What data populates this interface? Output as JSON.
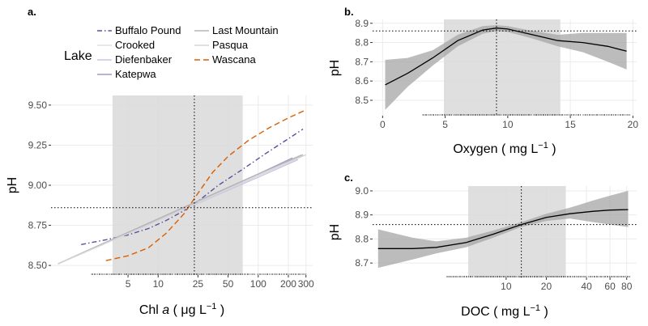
{
  "colors": {
    "panel_bg": "#ffffff",
    "grid": "#ebebeb",
    "shade": "#d9d9d9",
    "ribbon": "#a6a6a6",
    "fit": "#000000",
    "purple": "#7570b3",
    "orange": "#d95f02",
    "lavender": "#a3a0cf",
    "light": "#d0d0d0",
    "gray": "#b3b3b3"
  },
  "legend": {
    "title": "Lake",
    "items": [
      {
        "label": "Buffalo Pound",
        "style": "dashdot",
        "color": "#5b4f9e"
      },
      {
        "label": "Crooked",
        "style": "solid",
        "color": "#e0e0e0"
      },
      {
        "label": "Diefenbaker",
        "style": "solid",
        "color": "#c9c6e4"
      },
      {
        "label": "Katepwa",
        "style": "solid",
        "color": "#9f9cd0"
      },
      {
        "label": "Last Mountain",
        "style": "solid",
        "color": "#b5b5b5"
      },
      {
        "label": "Pasqua",
        "style": "solid",
        "color": "#d6d6d6"
      },
      {
        "label": "Wascana",
        "style": "dashed",
        "color": "#d95f02"
      }
    ]
  },
  "chart_data": [
    {
      "panel": "a.",
      "type": "line",
      "xlabel_parts": [
        "Chl ",
        "a",
        " ( μg L",
        "−1",
        " )"
      ],
      "ylabel": "pH",
      "x_scale": "log",
      "xlim": [
        0.85,
        350
      ],
      "ylim": [
        8.44,
        9.56
      ],
      "x_ticks": [
        5,
        10,
        25,
        50,
        100,
        200,
        300
      ],
      "x_tick_labels": [
        "5",
        "10",
        "25",
        "50",
        "100",
        "200",
        "300"
      ],
      "y_ticks": [
        8.5,
        8.75,
        9.0,
        9.25,
        9.5
      ],
      "y_tick_labels": [
        "8.50",
        "8.75",
        "9.00",
        "9.25",
        "9.50"
      ],
      "shaded_range": [
        3.5,
        70
      ],
      "vline": 23,
      "hline": 8.86,
      "series": [
        {
          "name": "Buffalo Pound",
          "style": "dashdot",
          "color": "#5b4f9e",
          "x": [
            1.7,
            3,
            5,
            8,
            12,
            18,
            25,
            40,
            70,
            120,
            200,
            280
          ],
          "y": [
            8.63,
            8.66,
            8.69,
            8.73,
            8.78,
            8.84,
            8.9,
            9.0,
            9.1,
            9.2,
            9.29,
            9.35
          ]
        },
        {
          "name": "Crooked",
          "style": "solid",
          "color": "#e0e0e0",
          "x": [
            1,
            10,
            100,
            270
          ],
          "y": [
            8.51,
            8.79,
            9.07,
            9.19
          ]
        },
        {
          "name": "Diefenbaker",
          "style": "solid",
          "color": "#c9c6e4",
          "x": [
            1,
            10,
            100,
            250
          ],
          "y": [
            8.51,
            8.78,
            9.05,
            9.16
          ]
        },
        {
          "name": "Katepwa",
          "style": "solid",
          "color": "#9f9cd0",
          "x": [
            1,
            10,
            100,
            220
          ],
          "y": [
            8.51,
            8.79,
            9.07,
            9.17
          ]
        },
        {
          "name": "Last Mountain",
          "style": "solid",
          "color": "#b5b5b5",
          "x": [
            1,
            10,
            100,
            280
          ],
          "y": [
            8.51,
            8.79,
            9.07,
            9.19
          ]
        },
        {
          "name": "Pasqua",
          "style": "solid",
          "color": "#d6d6d6",
          "x": [
            1,
            10,
            100,
            300
          ],
          "y": [
            8.51,
            8.78,
            9.06,
            9.19
          ]
        },
        {
          "name": "Wascana",
          "style": "dashed",
          "color": "#d95f02",
          "x": [
            3,
            5,
            8,
            12,
            18,
            25,
            35,
            50,
            80,
            130,
            200,
            300
          ],
          "y": [
            8.53,
            8.56,
            8.61,
            8.7,
            8.82,
            8.95,
            9.08,
            9.18,
            9.28,
            9.36,
            9.42,
            9.47
          ]
        }
      ]
    },
    {
      "panel": "b.",
      "type": "line",
      "xlabel_parts": [
        "Oxygen ( mg L",
        "−1",
        " )"
      ],
      "ylabel": "pH",
      "x_scale": "linear",
      "xlim": [
        -0.8,
        20.3
      ],
      "ylim": [
        8.42,
        8.92
      ],
      "x_ticks": [
        0,
        5,
        10,
        15,
        20
      ],
      "x_tick_labels": [
        "0",
        "5",
        "10",
        "15",
        "20"
      ],
      "y_ticks": [
        8.5,
        8.6,
        8.7,
        8.8,
        8.9
      ],
      "y_tick_labels": [
        "8.5",
        "8.6",
        "8.7",
        "8.8",
        "8.9"
      ],
      "shaded_range": [
        4.9,
        14.2
      ],
      "vline": 9.1,
      "hline": 8.86,
      "series": [
        {
          "name": "",
          "style": "solid",
          "color": "#000000",
          "x": [
            0.2,
            2,
            4,
            6,
            8,
            9.1,
            10,
            12,
            14,
            16,
            18,
            19.5
          ],
          "y": [
            8.58,
            8.64,
            8.72,
            8.81,
            8.865,
            8.875,
            8.87,
            8.84,
            8.81,
            8.8,
            8.78,
            8.755
          ],
          "lower": [
            8.45,
            8.57,
            8.68,
            8.78,
            8.845,
            8.86,
            8.855,
            8.82,
            8.78,
            8.75,
            8.7,
            8.66
          ],
          "upper": [
            8.71,
            8.72,
            8.76,
            8.84,
            8.885,
            8.89,
            8.885,
            8.86,
            8.84,
            8.85,
            8.85,
            8.85
          ]
        }
      ]
    },
    {
      "panel": "c.",
      "type": "line",
      "xlabel_parts": [
        "DOC ( mg L",
        "−1",
        " )"
      ],
      "ylabel": "pH",
      "x_scale": "log",
      "xlim": [
        1.0,
        95
      ],
      "ylim": [
        8.64,
        9.02
      ],
      "x_ticks": [
        10,
        20,
        40,
        60,
        80
      ],
      "x_tick_labels": [
        "10",
        "20",
        "40",
        "60",
        "80"
      ],
      "y_ticks": [
        8.7,
        8.8,
        8.9,
        9.0
      ],
      "y_tick_labels": [
        "8.7",
        "8.8",
        "8.9",
        "9.0"
      ],
      "shaded_range": [
        5.2,
        28
      ],
      "vline": 13,
      "hline": 8.86,
      "series": [
        {
          "name": "",
          "style": "solid",
          "color": "#000000",
          "x": [
            1.1,
            2,
            3,
            5,
            8,
            13,
            20,
            30,
            45,
            60,
            82
          ],
          "y": [
            8.76,
            8.76,
            8.765,
            8.785,
            8.82,
            8.86,
            8.89,
            8.905,
            8.915,
            8.92,
            8.922
          ],
          "lower": [
            8.68,
            8.715,
            8.74,
            8.765,
            8.805,
            8.85,
            8.875,
            8.885,
            8.87,
            8.86,
            8.85
          ],
          "upper": [
            8.84,
            8.805,
            8.79,
            8.805,
            8.835,
            8.87,
            8.905,
            8.93,
            8.96,
            8.98,
            9.0
          ]
        }
      ]
    }
  ]
}
